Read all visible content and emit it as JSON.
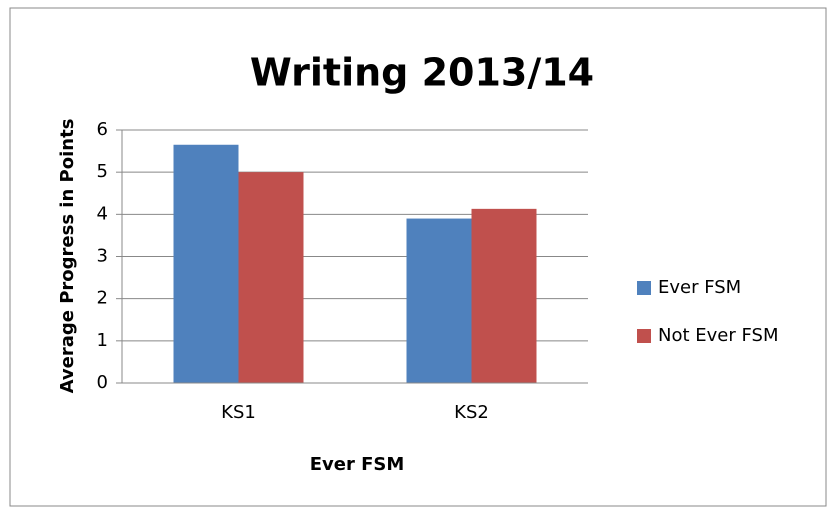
{
  "chart_data": {
    "type": "bar",
    "title": "Writing 2013/14",
    "x_label": "Ever FSM",
    "y_label": "Average Progress in Points",
    "categories": [
      "KS1",
      "KS2"
    ],
    "series": [
      {
        "name": "Ever FSM",
        "color": "#4f81bd",
        "values": [
          5.65,
          3.9
        ]
      },
      {
        "name": "Not Ever FSM",
        "color": "#c0504d",
        "values": [
          5.0,
          4.13
        ]
      }
    ],
    "ylim": [
      0,
      6
    ],
    "yticks": [
      0,
      1,
      2,
      3,
      4,
      5,
      6
    ],
    "grid": true,
    "legend": "right"
  }
}
